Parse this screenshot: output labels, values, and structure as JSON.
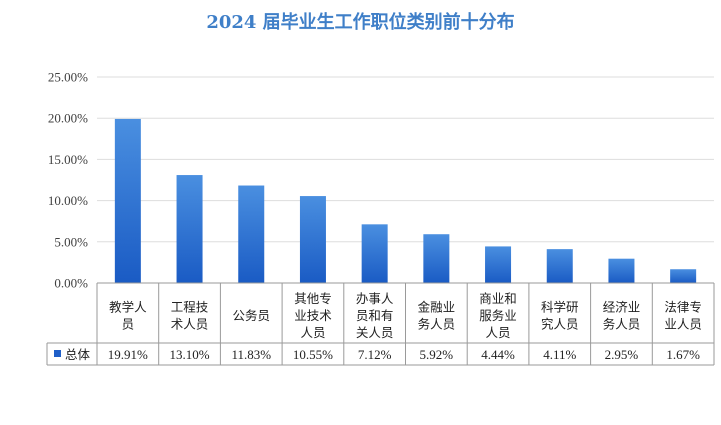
{
  "chart_data": {
    "type": "bar",
    "title": "2024 届毕业生工作职位类别前十分布",
    "categories": [
      [
        "教学人",
        "员"
      ],
      [
        "工程技",
        "术人员"
      ],
      [
        "公务员"
      ],
      [
        "其他专",
        "业技术",
        "人员"
      ],
      [
        "办事人",
        "员和有",
        "关人员"
      ],
      [
        "金融业",
        "务人员"
      ],
      [
        "商业和",
        "服务业",
        "人员"
      ],
      [
        "科学研",
        "究人员"
      ],
      [
        "经济业",
        "务人员"
      ],
      [
        "法律专",
        "业人员"
      ]
    ],
    "series": [
      {
        "name": "总体",
        "values": [
          19.91,
          13.1,
          11.83,
          10.55,
          7.12,
          5.92,
          4.44,
          4.11,
          2.95,
          1.67
        ],
        "labels": [
          "19.91%",
          "13.10%",
          "11.83%",
          "10.55%",
          "7.12%",
          "5.92%",
          "4.44%",
          "4.11%",
          "2.95%",
          "1.67%"
        ]
      }
    ],
    "yticks": [
      "0.00%",
      "5.00%",
      "10.00%",
      "15.00%",
      "20.00%",
      "25.00%"
    ],
    "ylim": [
      0,
      25
    ],
    "xlabel": "",
    "ylabel": "",
    "data_table": true,
    "colors": {
      "bar_top": "#4a8fe0",
      "bar_bottom": "#1a5bc4",
      "legend": "#1f5fc8",
      "grid": "#dddddd",
      "axis": "#9a9a9a",
      "title": "#3f7fc8"
    }
  }
}
